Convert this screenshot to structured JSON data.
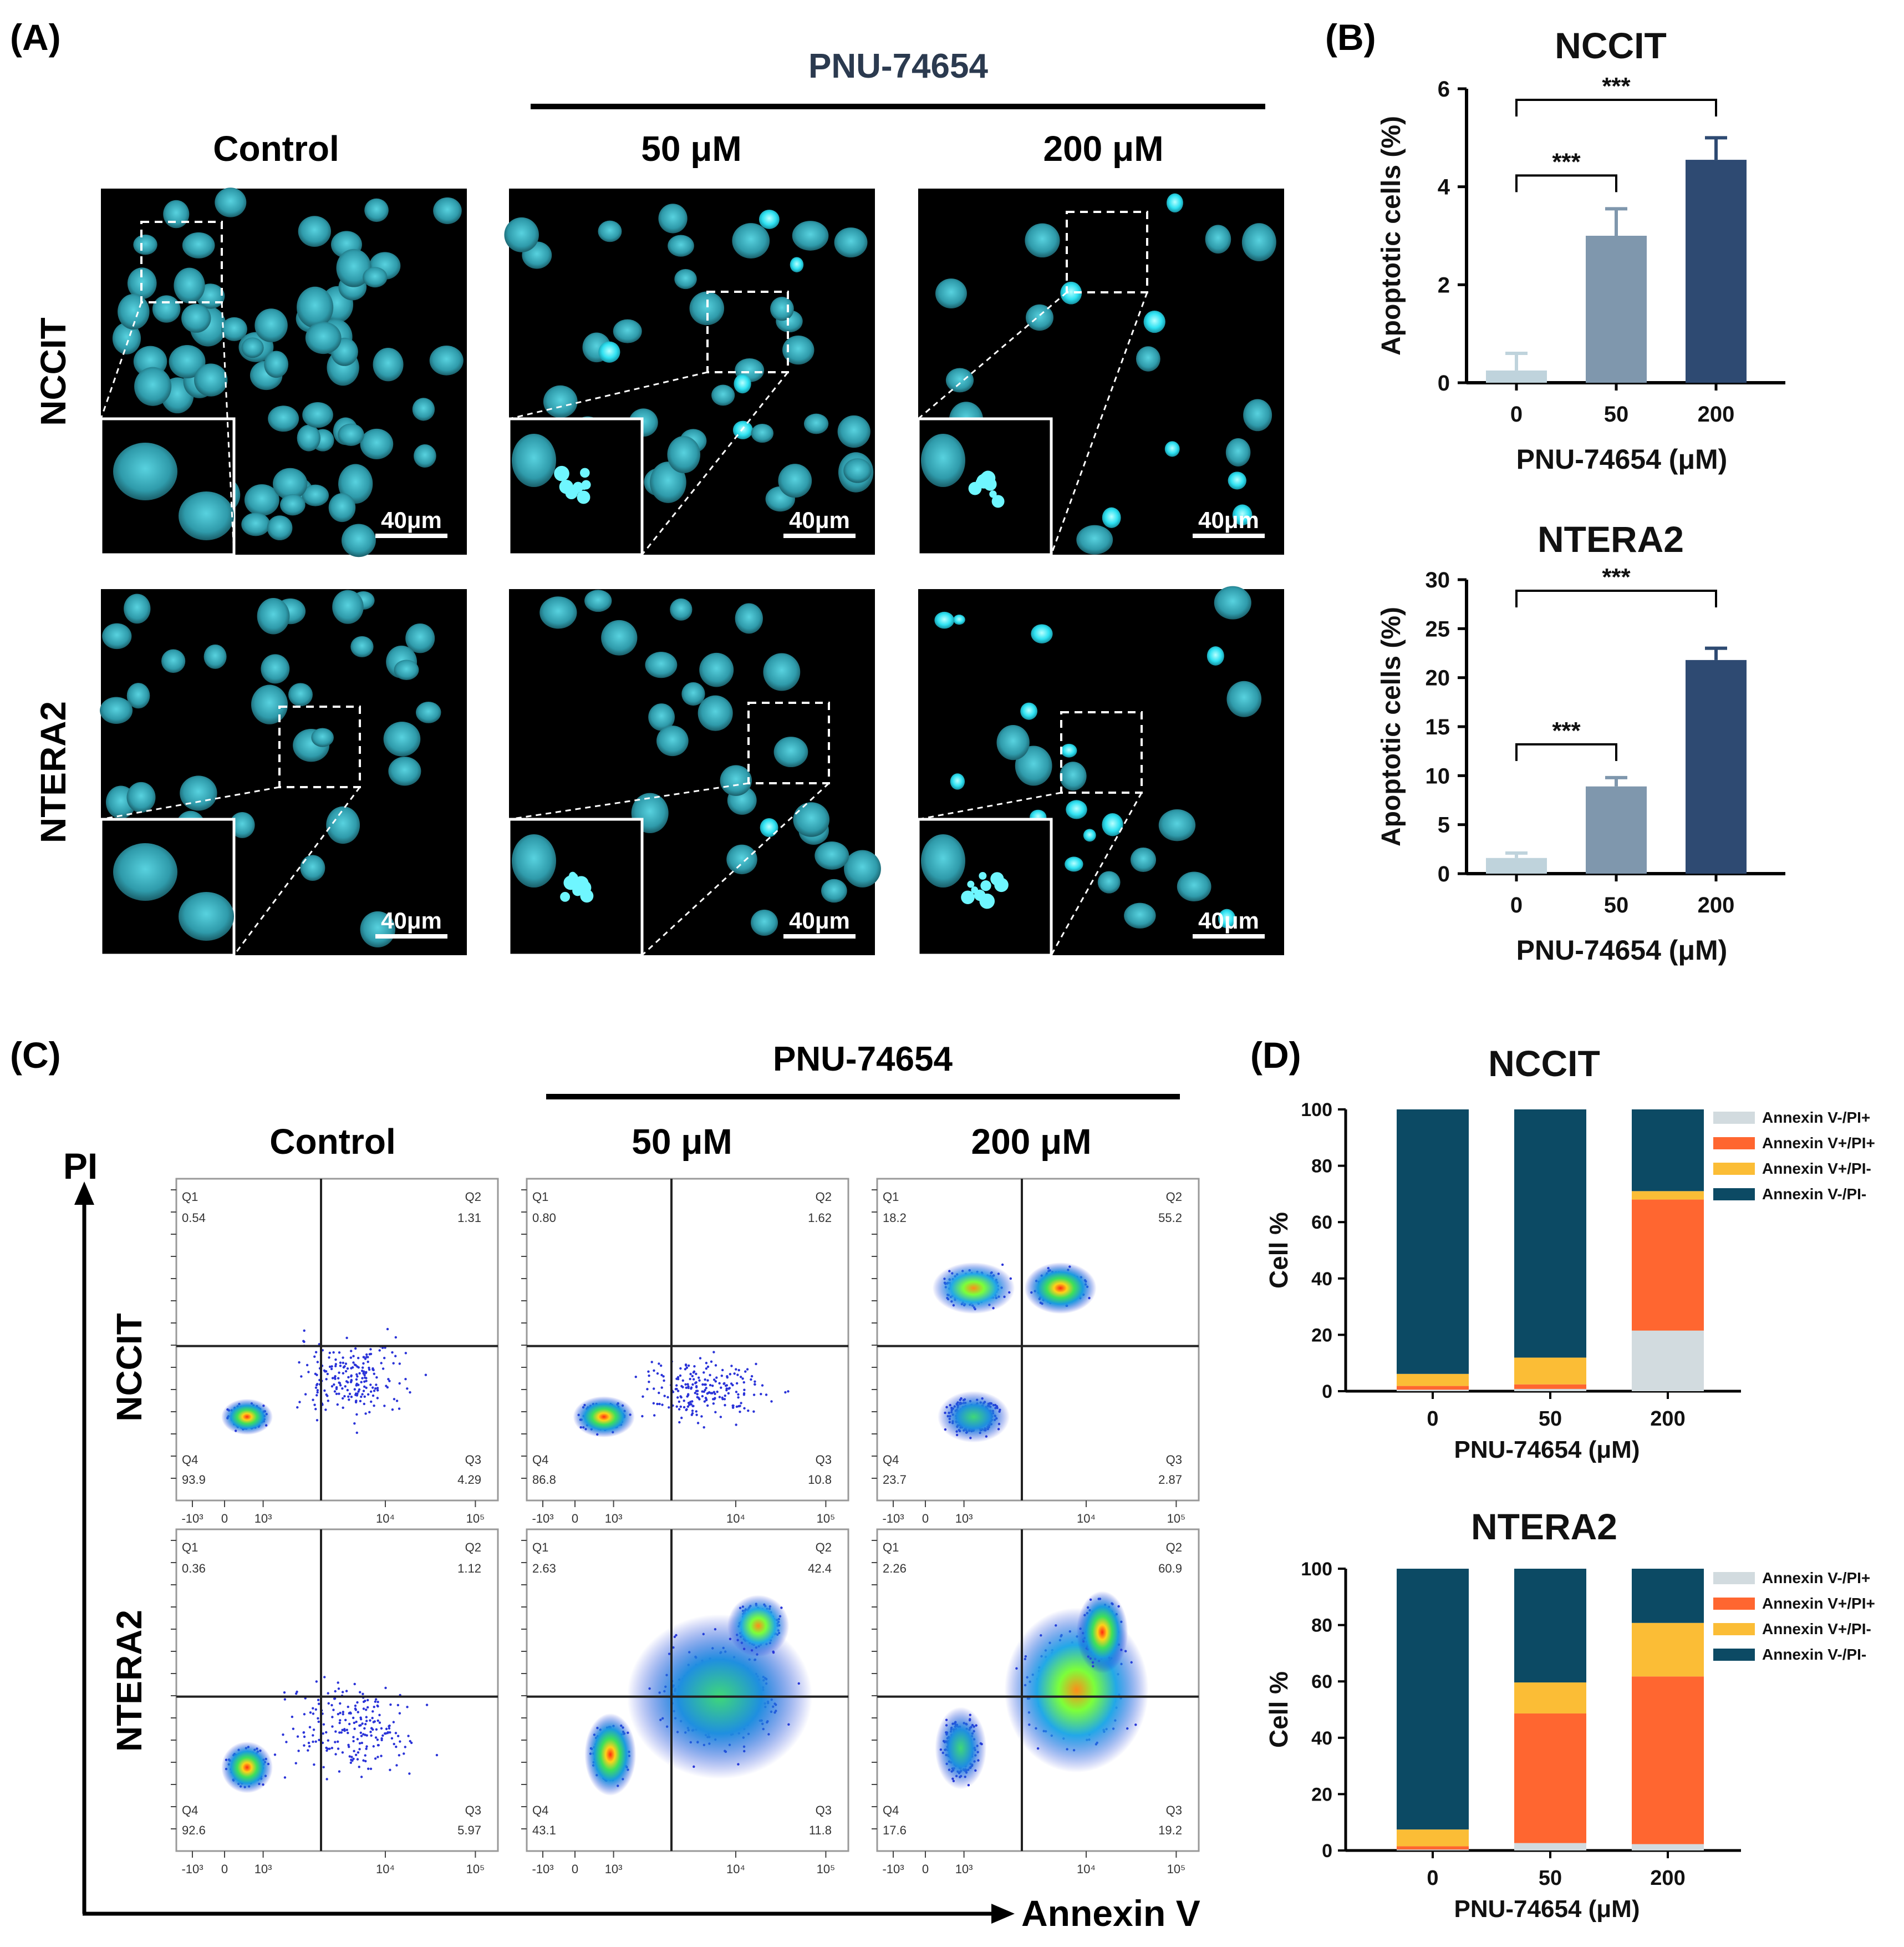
{
  "figure": {
    "panel_labels": [
      "(A)",
      "(B)",
      "(C)",
      "(D)"
    ],
    "panelA": {
      "treatment": "PNU-74654",
      "columns": [
        "Control",
        "50 μM",
        "200 μM"
      ],
      "rows": [
        "NCCIT",
        "NTERA2"
      ],
      "scale_bar": "40μm"
    },
    "panelC": {
      "treatment": "PNU-74654",
      "columns": [
        "Control",
        "50 μM",
        "200 μM"
      ],
      "rows": [
        "NCCIT",
        "NTERA2"
      ],
      "y_axis": "PI",
      "x_axis": "Annexin V",
      "quadrant_names": [
        "Q1",
        "Q2",
        "Q3",
        "Q4"
      ],
      "tick_labels": [
        "-10³",
        "0",
        "10³",
        "10⁴",
        "10⁵"
      ],
      "plots": [
        {
          "q1": "0.54",
          "q2": "1.31",
          "q3": "4.29",
          "q4": "93.9"
        },
        {
          "q1": "0.80",
          "q2": "1.62",
          "q3": "10.8",
          "q4": "86.8"
        },
        {
          "q1": "18.2",
          "q2": "55.2",
          "q3": "2.87",
          "q4": "23.7"
        },
        {
          "q1": "0.36",
          "q2": "1.12",
          "q3": "5.97",
          "q4": "92.6"
        },
        {
          "q1": "2.63",
          "q2": "42.4",
          "q3": "11.8",
          "q4": "43.1"
        },
        {
          "q1": "2.26",
          "q2": "60.9",
          "q3": "19.2",
          "q4": "17.6"
        }
      ]
    }
  },
  "chart_data": [
    {
      "type": "bar",
      "panel": "B",
      "title": "NCCIT",
      "categories": [
        "0",
        "50",
        "200"
      ],
      "values": [
        0.25,
        3.0,
        4.55
      ],
      "errors": [
        0.35,
        0.55,
        0.45
      ],
      "colors": [
        "#bfd3dc",
        "#7f97ad",
        "#2e4a72"
      ],
      "ylabel": "Apoptotic cells (%)",
      "xlabel": "PNU-74654  (μM)",
      "ylim": [
        0,
        6
      ],
      "yticks": [
        0,
        2,
        4,
        6
      ],
      "significance": [
        {
          "from": 0,
          "to": 1,
          "label": "***"
        },
        {
          "from": 0,
          "to": 2,
          "label": "***"
        }
      ]
    },
    {
      "type": "bar",
      "panel": "B",
      "title": "NTERA2",
      "categories": [
        "0",
        "50",
        "200"
      ],
      "values": [
        1.6,
        8.9,
        21.8
      ],
      "errors": [
        0.5,
        0.9,
        1.2
      ],
      "colors": [
        "#bfd3dc",
        "#7f97ad",
        "#2e4a72"
      ],
      "ylabel": "Apoptotic cells (%)",
      "xlabel": "PNU-74654  (μM)",
      "ylim": [
        0,
        30
      ],
      "yticks": [
        0,
        5,
        10,
        15,
        20,
        25,
        30
      ],
      "significance": [
        {
          "from": 0,
          "to": 1,
          "label": "***"
        },
        {
          "from": 0,
          "to": 2,
          "label": "***"
        }
      ]
    },
    {
      "type": "bar",
      "stacked": true,
      "panel": "D",
      "title": "NCCIT",
      "categories": [
        "0",
        "50",
        "200"
      ],
      "ylabel": "Cell %",
      "xlabel": "PNU-74654  (μM)",
      "ylim": [
        0,
        100
      ],
      "yticks": [
        0,
        20,
        40,
        60,
        80,
        100
      ],
      "legend_order": [
        "Annexin V-/PI+",
        "Annexin V+/PI+",
        "Annexin V+/PI-",
        "Annexin V-/PI-"
      ],
      "series": [
        {
          "name": "Annexin V-/PI+",
          "color": "#d2dbdf",
          "values": [
            0.54,
            0.8,
            21.5
          ]
        },
        {
          "name": "Annexin V+/PI+",
          "color": "#ff6630",
          "values": [
            1.31,
            1.62,
            46.5
          ]
        },
        {
          "name": "Annexin V+/PI-",
          "color": "#fbbd36",
          "values": [
            4.29,
            9.5,
            3.0
          ]
        },
        {
          "name": "Annexin V-/PI-",
          "color": "#0c4a64",
          "values": [
            93.86,
            88.08,
            29.0
          ]
        }
      ]
    },
    {
      "type": "bar",
      "stacked": true,
      "panel": "D",
      "title": "NTERA2",
      "categories": [
        "0",
        "50",
        "200"
      ],
      "ylabel": "Cell %",
      "xlabel": "PNU-74654  (μM)",
      "ylim": [
        0,
        100
      ],
      "yticks": [
        0,
        20,
        40,
        60,
        80,
        100
      ],
      "legend_order": [
        "Annexin V-/PI+",
        "Annexin V+/PI+",
        "Annexin V+/PI-",
        "Annexin V-/PI-"
      ],
      "series": [
        {
          "name": "Annexin V-/PI+",
          "color": "#d2dbdf",
          "values": [
            0.36,
            2.63,
            2.26
          ]
        },
        {
          "name": "Annexin V+/PI+",
          "color": "#ff6630",
          "values": [
            1.12,
            46.0,
            59.5
          ]
        },
        {
          "name": "Annexin V+/PI-",
          "color": "#fbbd36",
          "values": [
            5.97,
            11.0,
            19.0
          ]
        },
        {
          "name": "Annexin V-/PI-",
          "color": "#0c4a64",
          "values": [
            92.55,
            40.37,
            19.24
          ]
        }
      ]
    }
  ]
}
